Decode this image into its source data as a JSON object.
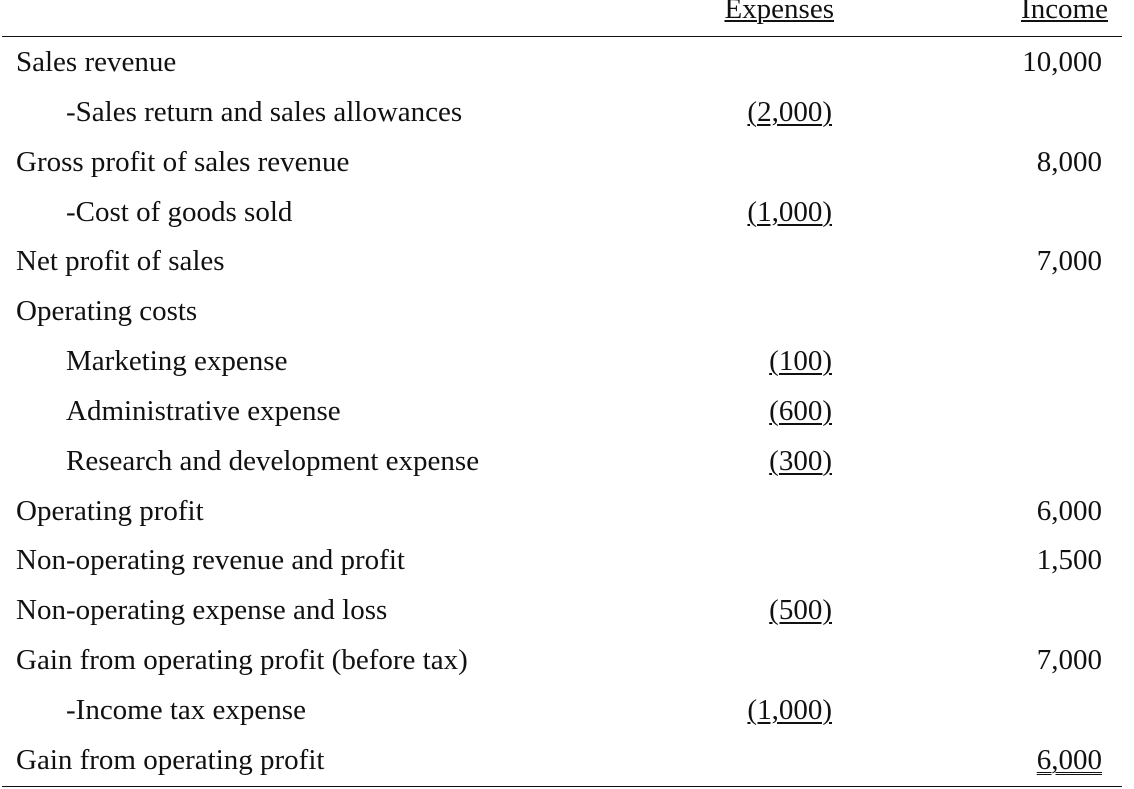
{
  "headers": {
    "expenses": "Expenses",
    "income": "Income"
  },
  "rows": [
    {
      "label": "Sales revenue",
      "expense": "",
      "income": "10,000"
    },
    {
      "label": "-Sales return and sales allowances",
      "expense": "(2,000)",
      "income": ""
    },
    {
      "label": "Gross profit of sales revenue",
      "expense": "",
      "income": "8,000"
    },
    {
      "label": "-Cost of goods sold",
      "expense": "(1,000)",
      "income": ""
    },
    {
      "label": "Net profit of sales",
      "expense": "",
      "income": "7,000"
    },
    {
      "label": "Operating costs",
      "expense": "",
      "income": ""
    },
    {
      "label": "Marketing expense",
      "expense": "(100)",
      "income": ""
    },
    {
      "label": "Administrative expense",
      "expense": "(600)",
      "income": ""
    },
    {
      "label": "Research and development expense",
      "expense": "(300)",
      "income": ""
    },
    {
      "label": "Operating profit",
      "expense": "",
      "income": "6,000"
    },
    {
      "label": "Non-operating revenue and profit",
      "expense": "",
      "income": "1,500"
    },
    {
      "label": "Non-operating expense and loss",
      "expense": "(500)",
      "income": ""
    },
    {
      "label": "Gain from operating profit (before tax)",
      "expense": "",
      "income": "7,000"
    },
    {
      "label": "-Income tax expense",
      "expense": "(1,000)",
      "income": ""
    },
    {
      "label": "Gain from operating profit",
      "expense": "",
      "income": "6,000"
    }
  ]
}
